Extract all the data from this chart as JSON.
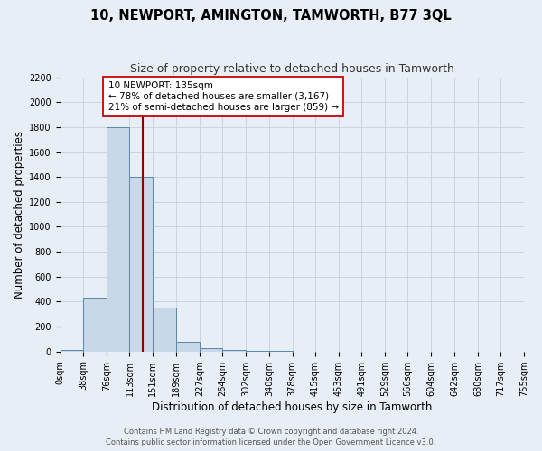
{
  "title": "10, NEWPORT, AMINGTON, TAMWORTH, B77 3QL",
  "subtitle": "Size of property relative to detached houses in Tamworth",
  "xlabel": "Distribution of detached houses by size in Tamworth",
  "ylabel": "Number of detached properties",
  "bin_edges": [
    0,
    38,
    76,
    113,
    151,
    189,
    227,
    264,
    302,
    340,
    378,
    415,
    453,
    491,
    529,
    566,
    604,
    642,
    680,
    717,
    755
  ],
  "bin_counts": [
    15,
    430,
    1800,
    1400,
    350,
    80,
    25,
    10,
    5,
    2,
    0,
    0,
    0,
    0,
    0,
    0,
    0,
    0,
    0,
    0
  ],
  "bar_color": "#c8d8e8",
  "bar_edge_color": "#5588aa",
  "property_size": 135,
  "property_line_color": "#8b0000",
  "annotation_title": "10 NEWPORT: 135sqm",
  "annotation_line1": "← 78% of detached houses are smaller (3,167)",
  "annotation_line2": "21% of semi-detached houses are larger (859) →",
  "annotation_box_color": "#ffffff",
  "annotation_box_edge": "#cc0000",
  "ylim": [
    0,
    2200
  ],
  "yticks": [
    0,
    200,
    400,
    600,
    800,
    1000,
    1200,
    1400,
    1600,
    1800,
    2000,
    2200
  ],
  "xtick_labels": [
    "0sqm",
    "38sqm",
    "76sqm",
    "113sqm",
    "151sqm",
    "189sqm",
    "227sqm",
    "264sqm",
    "302sqm",
    "340sqm",
    "378sqm",
    "415sqm",
    "453sqm",
    "491sqm",
    "529sqm",
    "566sqm",
    "604sqm",
    "642sqm",
    "680sqm",
    "717sqm",
    "755sqm"
  ],
  "footer_line1": "Contains HM Land Registry data © Crown copyright and database right 2024.",
  "footer_line2": "Contains public sector information licensed under the Open Government Licence v3.0.",
  "grid_color": "#c8d0dc",
  "background_color": "#e8eef5",
  "title_fontsize": 10.5,
  "subtitle_fontsize": 9,
  "axis_label_fontsize": 8.5,
  "tick_fontsize": 7,
  "annotation_fontsize": 7.5,
  "footer_fontsize": 6
}
